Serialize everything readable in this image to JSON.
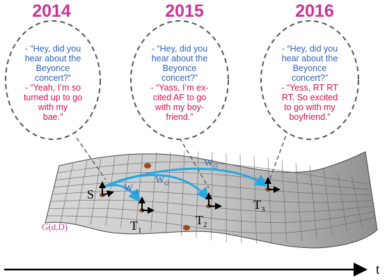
{
  "years": [
    "2014",
    "2015",
    "2016"
  ],
  "bubbles": [
    {
      "question_lines": [
        "- “Hey, did you",
        "hear about the",
        "Beyonce",
        "concert?”"
      ],
      "answer_lines": [
        "- “Yeah, I’m so",
        "turned up to go",
        "with my",
        "bae.”"
      ]
    },
    {
      "question_lines": [
        "- “Hey, did you",
        "hear about the",
        "Beyonce",
        "concert?”"
      ],
      "answer_lines": [
        "- “Yass, I’m ex-",
        "cited AF to go",
        "with my boy-",
        "friend.”"
      ]
    },
    {
      "question_lines": [
        "- “Hey, did you",
        "hear about the",
        "Beyonce",
        "concert?”"
      ],
      "answer_lines": [
        "- “Yess, RT RT",
        "RT.  So excited",
        "to go with my",
        "boyfriend.”"
      ]
    }
  ],
  "points": {
    "source": {
      "main": "S",
      "sub": ""
    },
    "t1": {
      "main": "T",
      "sub": "1"
    },
    "t2": {
      "main": "T",
      "sub": "2"
    },
    "t3": {
      "main": "T",
      "sub": "3"
    }
  },
  "weights": [
    {
      "main": "W",
      "sub": "t1"
    },
    {
      "main": "W",
      "sub": "t2"
    },
    {
      "main": "W",
      "sub": "t3"
    }
  ],
  "manifold_label": "G(d,D)",
  "time_axis_label": "t",
  "colors": {
    "year": "#cc3399",
    "question": "#2f63b8",
    "answer": "#d6104f",
    "arrow": "#2aa7e0",
    "point": "#9b4a1c"
  }
}
